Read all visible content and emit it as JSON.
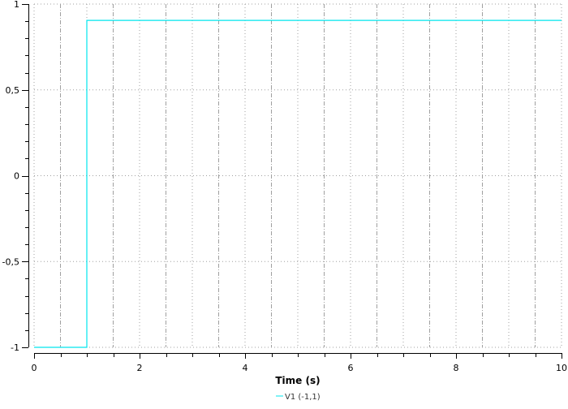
{
  "chart_data": {
    "type": "line",
    "title": "",
    "xlabel": "Time (s)",
    "ylabel": "",
    "xlim": [
      0,
      10
    ],
    "ylim": [
      -1,
      1
    ],
    "xticks": [
      0,
      2,
      4,
      6,
      8,
      10
    ],
    "xtick_labels": [
      "0",
      "2",
      "4",
      "6",
      "8",
      "10"
    ],
    "yticks": [
      -1,
      -0.5,
      0,
      0.5,
      1
    ],
    "ytick_labels": [
      "-1",
      "-0,5",
      "0",
      "0,5",
      "1"
    ],
    "grid": true,
    "legend_position": "bottom-center",
    "series": [
      {
        "name": "V1 (-1,1)",
        "color": "#00e5ee",
        "x": [
          0,
          1,
          1,
          10
        ],
        "y": [
          -1,
          -1,
          0.905,
          0.905
        ]
      }
    ]
  }
}
